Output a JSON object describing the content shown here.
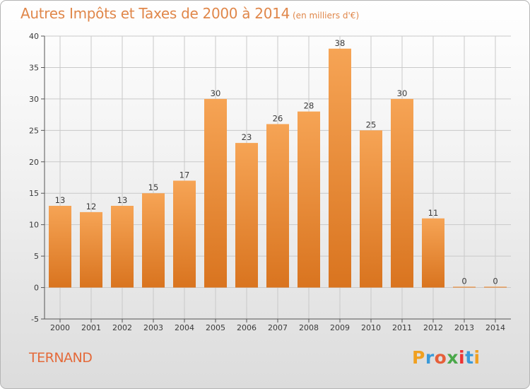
{
  "title": "Autres Impôts et Taxes de 2000 à 2014",
  "title_unit": "(en milliers d'€)",
  "commune": "TERNAND",
  "logo": {
    "letters": [
      "P",
      "r",
      "o",
      "x",
      "i",
      "t",
      "i"
    ],
    "colors": [
      "#f0a020",
      "#3a9ad9",
      "#e65f3a",
      "#4aa84a",
      "#e33",
      "#3a9ad9",
      "#f0a020"
    ]
  },
  "colors": {
    "bar_top": "#f6a455",
    "bar_bottom": "#d9741f",
    "title": "#e0874a",
    "commune": "#e46a3a",
    "grid": "#c9c9c9"
  },
  "chart_data": {
    "type": "bar",
    "categories": [
      "2000",
      "2001",
      "2002",
      "2003",
      "2004",
      "2005",
      "2006",
      "2007",
      "2008",
      "2009",
      "2010",
      "2011",
      "2012",
      "2013",
      "2014"
    ],
    "values": [
      13,
      12,
      13,
      15,
      17,
      30,
      23,
      26,
      28,
      38,
      25,
      30,
      11,
      0,
      0
    ],
    "ylim": [
      -5,
      40
    ],
    "yticks": [
      -5,
      0,
      5,
      10,
      15,
      20,
      25,
      30,
      35,
      40
    ],
    "grid": true,
    "xlabel": "",
    "ylabel": ""
  }
}
